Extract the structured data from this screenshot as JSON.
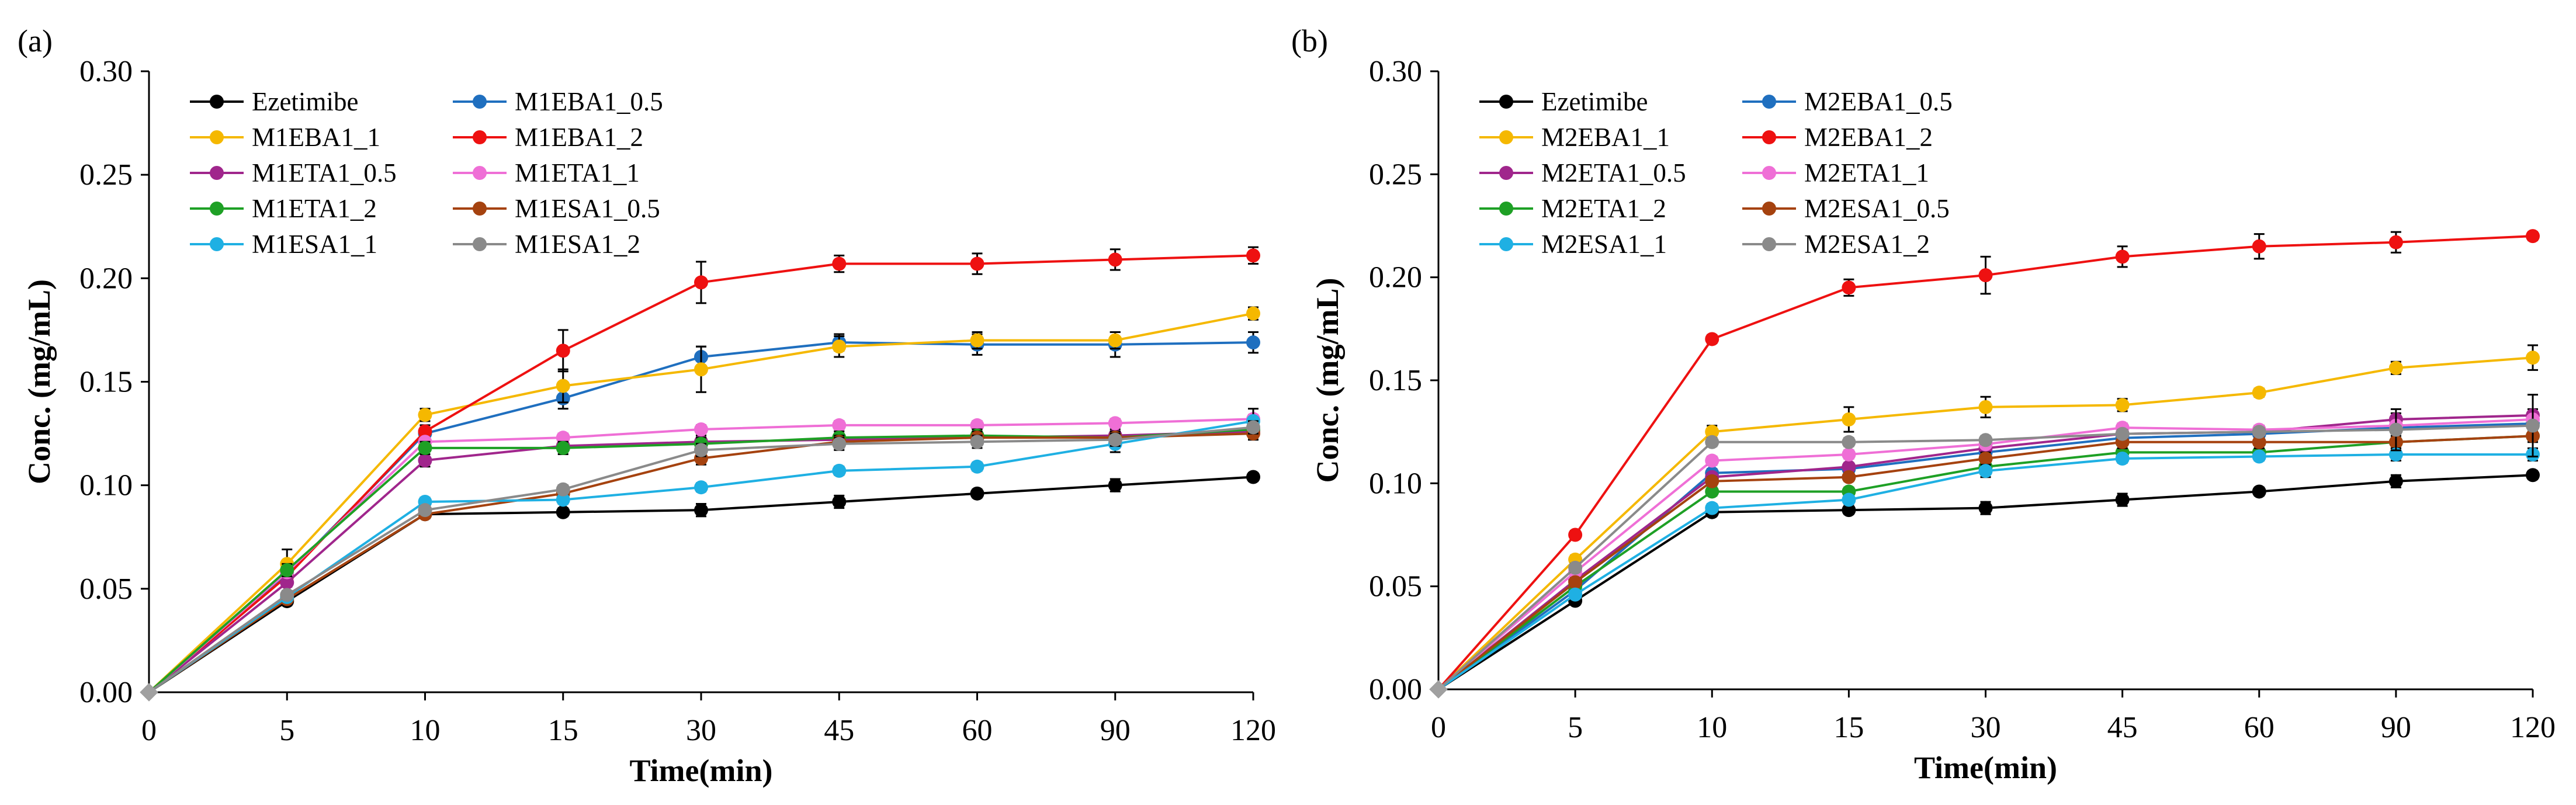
{
  "chart_data": [
    {
      "type": "line",
      "panel_label": "(a)",
      "xlabel": "Time(min)",
      "ylabel": "Conc. (mg/mL)",
      "x_categories": [
        "0",
        "5",
        "10",
        "15",
        "30",
        "45",
        "60",
        "90",
        "120"
      ],
      "ylim": [
        0,
        0.3
      ],
      "y_ticks": [
        "0.00",
        "0.05",
        "0.10",
        "0.15",
        "0.20",
        "0.25",
        "0.30"
      ],
      "grid": false,
      "legend_position": "top-left",
      "series": [
        {
          "name": "Ezetimibe",
          "color": "#000000",
          "values": [
            0,
            0.044,
            0.086,
            0.087,
            0.088,
            0.092,
            0.096,
            0.1,
            0.104
          ],
          "errors": [
            0,
            0.002,
            0.002,
            0.002,
            0.003,
            0.003,
            0.002,
            0.003,
            0.002
          ]
        },
        {
          "name": "M1EBA1_0.5",
          "color": "#1f6fbf",
          "values": [
            0,
            0.057,
            0.125,
            0.142,
            0.162,
            0.169,
            0.168,
            0.168,
            0.169
          ],
          "errors": [
            0,
            0.003,
            0.003,
            0.005,
            0.005,
            0.004,
            0.005,
            0.006,
            0.005
          ]
        },
        {
          "name": "M1EBA1_1",
          "color": "#f5b800",
          "values": [
            0,
            0.062,
            0.134,
            0.148,
            0.156,
            0.167,
            0.17,
            0.17,
            0.183
          ],
          "errors": [
            0,
            0.007,
            0.003,
            0.008,
            0.011,
            0.005,
            0.004,
            0.004,
            0.003
          ]
        },
        {
          "name": "M1EBA1_2",
          "color": "#ee1111",
          "values": [
            0,
            0.056,
            0.126,
            0.165,
            0.198,
            0.207,
            0.207,
            0.209,
            0.211
          ],
          "errors": [
            0,
            0.003,
            0.003,
            0.01,
            0.01,
            0.004,
            0.005,
            0.005,
            0.004
          ]
        },
        {
          "name": "M1ETA1_0.5",
          "color": "#a0268c",
          "values": [
            0,
            0.053,
            0.112,
            0.119,
            0.121,
            0.122,
            0.123,
            0.124,
            0.126
          ],
          "errors": [
            0,
            0.002,
            0.003,
            0.003,
            0.003,
            0.003,
            0.003,
            0.003,
            0.003
          ]
        },
        {
          "name": "M1ETA1_1",
          "color": "#ef6fd6",
          "values": [
            0,
            0.058,
            0.121,
            0.123,
            0.127,
            0.129,
            0.129,
            0.13,
            0.132
          ],
          "errors": [
            0,
            0.002,
            0.002,
            0.002,
            0.002,
            0.002,
            0.002,
            0.002,
            0.002
          ]
        },
        {
          "name": "M1ETA1_2",
          "color": "#1ea025",
          "values": [
            0,
            0.059,
            0.118,
            0.118,
            0.12,
            0.123,
            0.124,
            0.123,
            0.127
          ],
          "errors": [
            0,
            0.003,
            0.003,
            0.003,
            0.003,
            0.003,
            0.003,
            0.003,
            0.003
          ]
        },
        {
          "name": "M1ESA1_0.5",
          "color": "#a5420f",
          "values": [
            0,
            0.045,
            0.086,
            0.096,
            0.113,
            0.121,
            0.123,
            0.123,
            0.125
          ],
          "errors": [
            0,
            0.002,
            0.002,
            0.002,
            0.003,
            0.003,
            0.003,
            0.003,
            0.003
          ]
        },
        {
          "name": "M1ESA1_1",
          "color": "#1fb0e3",
          "values": [
            0,
            0.046,
            0.092,
            0.093,
            0.099,
            0.107,
            0.109,
            0.12,
            0.131
          ],
          "errors": [
            0,
            0.002,
            0.002,
            0.002,
            0.002,
            0.002,
            0.002,
            0.004,
            0.006
          ]
        },
        {
          "name": "M1ESA1_2",
          "color": "#8a8a8a",
          "values": [
            0,
            0.047,
            0.088,
            0.098,
            0.117,
            0.12,
            0.121,
            0.122,
            0.128
          ],
          "errors": [
            0,
            0.002,
            0.002,
            0.002,
            0.003,
            0.003,
            0.003,
            0.003,
            0.003
          ]
        }
      ]
    },
    {
      "type": "line",
      "panel_label": "(b)",
      "xlabel": "Time(min)",
      "ylabel": "Conc. (mg/mL)",
      "x_categories": [
        "0",
        "5",
        "10",
        "15",
        "30",
        "45",
        "60",
        "90",
        "120"
      ],
      "ylim": [
        0,
        0.3
      ],
      "y_ticks": [
        "0.00",
        "0.05",
        "0.10",
        "0.15",
        "0.20",
        "0.25",
        "0.30"
      ],
      "grid": false,
      "legend_position": "top-left",
      "series": [
        {
          "name": "Ezetimibe",
          "color": "#000000",
          "values": [
            0,
            0.043,
            0.086,
            0.087,
            0.088,
            0.092,
            0.096,
            0.101,
            0.104
          ],
          "errors": [
            0,
            0.002,
            0.002,
            0.002,
            0.003,
            0.003,
            0.002,
            0.003,
            0.002
          ]
        },
        {
          "name": "M2EBA1_0.5",
          "color": "#1f6fbf",
          "values": [
            0,
            0.048,
            0.105,
            0.107,
            0.115,
            0.122,
            0.124,
            0.127,
            0.129
          ],
          "errors": [
            0,
            0.002,
            0.002,
            0.002,
            0.003,
            0.003,
            0.003,
            0.003,
            0.003
          ]
        },
        {
          "name": "M2EBA1_1",
          "color": "#f5b800",
          "values": [
            0,
            0.063,
            0.125,
            0.131,
            0.137,
            0.138,
            0.144,
            0.156,
            0.161
          ],
          "errors": [
            0,
            0.002,
            0.003,
            0.006,
            0.005,
            0.003,
            0.002,
            0.003,
            0.006
          ]
        },
        {
          "name": "M2EBA1_2",
          "color": "#ee1111",
          "values": [
            0,
            0.075,
            0.17,
            0.195,
            0.201,
            0.21,
            0.215,
            0.217,
            0.22
          ],
          "errors": [
            0,
            0.002,
            0.002,
            0.004,
            0.009,
            0.005,
            0.006,
            0.005,
            0.002
          ]
        },
        {
          "name": "M2ETA1_0.5",
          "color": "#a0268c",
          "values": [
            0,
            0.053,
            0.103,
            0.108,
            0.117,
            0.124,
            0.125,
            0.131,
            0.133
          ],
          "errors": [
            0,
            0.002,
            0.002,
            0.002,
            0.003,
            0.003,
            0.003,
            0.003,
            0.003
          ]
        },
        {
          "name": "M2ETA1_1",
          "color": "#ef6fd6",
          "values": [
            0,
            0.057,
            0.111,
            0.114,
            0.119,
            0.127,
            0.126,
            0.128,
            0.131
          ],
          "errors": [
            0,
            0.002,
            0.002,
            0.002,
            0.002,
            0.002,
            0.002,
            0.002,
            0.002
          ]
        },
        {
          "name": "M2ETA1_2",
          "color": "#1ea025",
          "values": [
            0,
            0.05,
            0.096,
            0.096,
            0.108,
            0.115,
            0.115,
            0.12,
            0.123
          ],
          "errors": [
            0,
            0.002,
            0.002,
            0.002,
            0.002,
            0.002,
            0.002,
            0.002,
            0.002
          ]
        },
        {
          "name": "M2ESA1_0.5",
          "color": "#a5420f",
          "values": [
            0,
            0.052,
            0.101,
            0.103,
            0.112,
            0.12,
            0.12,
            0.12,
            0.123
          ],
          "errors": [
            0,
            0.002,
            0.002,
            0.002,
            0.003,
            0.003,
            0.003,
            0.003,
            0.003
          ]
        },
        {
          "name": "M2ESA1_1",
          "color": "#1fb0e3",
          "values": [
            0,
            0.046,
            0.088,
            0.092,
            0.106,
            0.112,
            0.113,
            0.114,
            0.114
          ],
          "errors": [
            0,
            0.002,
            0.002,
            0.002,
            0.003,
            0.002,
            0.002,
            0.003,
            0.003
          ]
        },
        {
          "name": "M2ESA1_2",
          "color": "#8a8a8a",
          "values": [
            0,
            0.059,
            0.12,
            0.12,
            0.121,
            0.124,
            0.125,
            0.126,
            0.128
          ],
          "errors": [
            0,
            0.002,
            0.002,
            0.002,
            0.002,
            0.002,
            0.002,
            0.01,
            0.015
          ]
        }
      ]
    }
  ]
}
